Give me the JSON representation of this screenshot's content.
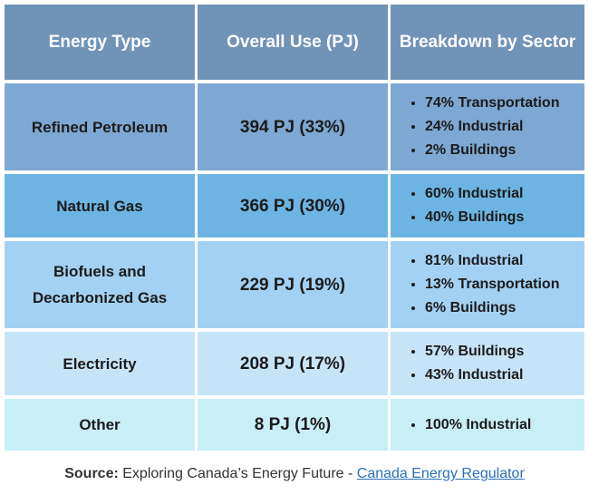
{
  "table": {
    "header": [
      "Energy Type",
      "Overall Use (PJ)",
      "Breakdown by Sector"
    ],
    "rows": [
      {
        "type": "Refined Petroleum",
        "use": "394 PJ (33%)",
        "breakdown": [
          "74% Transportation",
          "24% Industrial",
          "2% Buildings"
        ]
      },
      {
        "type": "Natural Gas",
        "use": "366 PJ (30%)",
        "breakdown": [
          "60% Industrial",
          "40% Buildings"
        ]
      },
      {
        "type": "Biofuels and Decarbonized Gas",
        "use": "229 PJ (19%)",
        "breakdown": [
          "81% Industrial",
          "13% Transportation",
          "6% Buildings"
        ]
      },
      {
        "type": "Electricity",
        "use": "208 PJ (17%)",
        "breakdown": [
          "57% Buildings",
          "43% Industrial"
        ]
      },
      {
        "type": "Other",
        "use": "8 PJ (1%)",
        "breakdown": [
          "100% Industrial"
        ]
      }
    ]
  },
  "source": {
    "label": "Source:",
    "text": "Exploring Canada’s Energy Future -",
    "link": "Canada Energy Regulator"
  }
}
